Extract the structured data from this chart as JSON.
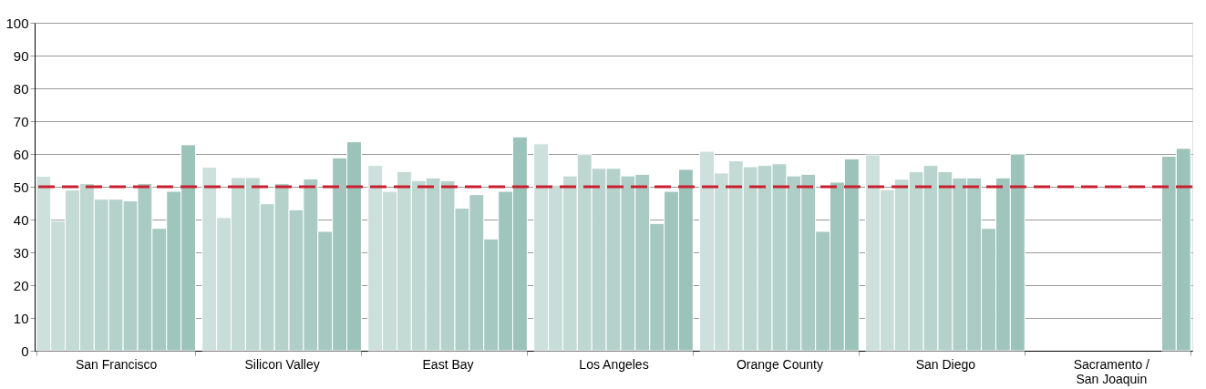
{
  "chart_data": {
    "type": "bar",
    "categories": [
      "San Francisco",
      "Silicon Valley",
      "East Bay",
      "Los Angeles",
      "Orange County",
      "San Diego",
      "Sacramento / San Joaquin"
    ],
    "series": [
      {
        "color": "#cde0dc",
        "values": [
          53.2,
          56.0,
          56.5,
          63.1,
          60.8,
          59.7,
          null
        ]
      },
      {
        "color": "#c8ddd8",
        "values": [
          39.6,
          40.6,
          48.6,
          50.5,
          54.2,
          49.1,
          null
        ]
      },
      {
        "color": "#c3dad5",
        "values": [
          49.0,
          52.8,
          54.6,
          53.3,
          57.9,
          52.3,
          null
        ]
      },
      {
        "color": "#bed7d1",
        "values": [
          51.0,
          52.8,
          51.9,
          59.8,
          56.1,
          54.6,
          null
        ]
      },
      {
        "color": "#b9d4ce",
        "values": [
          46.2,
          44.8,
          52.7,
          55.6,
          56.5,
          56.5,
          null
        ]
      },
      {
        "color": "#b4d1ca",
        "values": [
          46.2,
          51.0,
          51.8,
          55.6,
          57.0,
          54.6,
          null
        ]
      },
      {
        "color": "#afcec7",
        "values": [
          45.7,
          43.0,
          43.5,
          53.3,
          53.3,
          52.7,
          null
        ]
      },
      {
        "color": "#aacbc3",
        "values": [
          51.0,
          52.4,
          47.6,
          53.8,
          53.8,
          52.7,
          null
        ]
      },
      {
        "color": "#a5c8c0",
        "values": [
          37.3,
          36.4,
          34.1,
          38.8,
          36.4,
          37.3,
          null
        ]
      },
      {
        "color": "#a0c5bc",
        "values": [
          48.6,
          58.8,
          48.6,
          48.6,
          51.4,
          52.7,
          59.3
        ]
      },
      {
        "color": "#9bc3b9",
        "values": [
          62.8,
          63.7,
          65.2,
          55.3,
          58.5,
          60.0,
          61.7
        ]
      }
    ],
    "ylim": [
      0,
      100
    ],
    "yticks": [
      0,
      10,
      20,
      30,
      40,
      50,
      60,
      70,
      80,
      90,
      100
    ],
    "grid": "y",
    "legend": false,
    "ref_lines": [
      {
        "axis": "y",
        "value": 50,
        "color": "#c8202f",
        "line_style": "dashed"
      }
    ]
  }
}
